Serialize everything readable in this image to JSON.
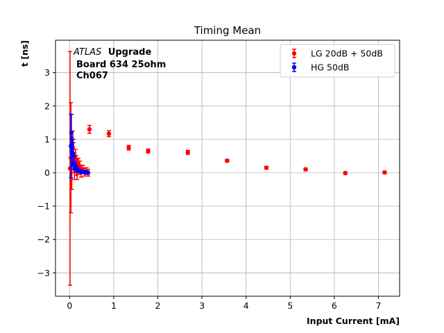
{
  "chart_data": {
    "type": "scatter",
    "title": "Timing Mean",
    "xlabel": "Input Current [mA]",
    "ylabel": "t [ns]",
    "xlim": [
      -0.32,
      7.48
    ],
    "ylim": [
      -3.7,
      3.97
    ],
    "xticks": [
      0,
      1,
      2,
      3,
      4,
      5,
      6,
      7
    ],
    "yticks": [
      -3,
      -2,
      -1,
      0,
      1,
      2,
      3
    ],
    "grid": true,
    "legend_position": "top-right",
    "annotation": {
      "experiment": "ATLAS",
      "experiment_suffix": "Upgrade",
      "line2": "Board 634 25ohm",
      "line3": "Ch067"
    },
    "series": [
      {
        "name": "LG 20dB + 50dB",
        "color": "#ff0000",
        "points": [
          {
            "x": 0.01,
            "y": 0.13,
            "err": 3.5
          },
          {
            "x": 0.03,
            "y": 0.45,
            "err": 1.65
          },
          {
            "x": 0.05,
            "y": 0.3,
            "err": 0.8
          },
          {
            "x": 0.07,
            "y": 0.75,
            "err": 0.5
          },
          {
            "x": 0.09,
            "y": 0.45,
            "err": 0.45
          },
          {
            "x": 0.11,
            "y": 0.2,
            "err": 0.4
          },
          {
            "x": 0.13,
            "y": 0.45,
            "err": 0.25
          },
          {
            "x": 0.15,
            "y": 0.22,
            "err": 0.3
          },
          {
            "x": 0.17,
            "y": 0.1,
            "err": 0.3
          },
          {
            "x": 0.2,
            "y": 0.25,
            "err": 0.18
          },
          {
            "x": 0.23,
            "y": 0.15,
            "err": 0.2
          },
          {
            "x": 0.26,
            "y": 0.05,
            "err": 0.18
          },
          {
            "x": 0.3,
            "y": 0.1,
            "err": 0.12
          },
          {
            "x": 0.34,
            "y": 0.02,
            "err": 0.12
          },
          {
            "x": 0.38,
            "y": 0.05,
            "err": 0.1
          },
          {
            "x": 0.42,
            "y": 0.0,
            "err": 0.1
          },
          {
            "x": 0.45,
            "y": 1.3,
            "err": 0.12
          },
          {
            "x": 0.89,
            "y": 1.17,
            "err": 0.09
          },
          {
            "x": 1.34,
            "y": 0.75,
            "err": 0.07
          },
          {
            "x": 1.78,
            "y": 0.65,
            "err": 0.06
          },
          {
            "x": 2.68,
            "y": 0.61,
            "err": 0.06
          },
          {
            "x": 3.57,
            "y": 0.36,
            "err": 0.04
          },
          {
            "x": 4.46,
            "y": 0.15,
            "err": 0.04
          },
          {
            "x": 5.35,
            "y": 0.1,
            "err": 0.04
          },
          {
            "x": 6.25,
            "y": -0.01,
            "err": 0.04
          },
          {
            "x": 7.14,
            "y": 0.01,
            "err": 0.04
          }
        ]
      },
      {
        "name": "HG 50dB",
        "color": "#0000ff",
        "points": [
          {
            "x": 0.03,
            "y": 0.8,
            "err": 0.95
          },
          {
            "x": 0.04,
            "y": 1.2,
            "err": 0.55
          },
          {
            "x": 0.05,
            "y": 0.75,
            "err": 0.3
          },
          {
            "x": 0.06,
            "y": 0.6,
            "err": 0.4
          },
          {
            "x": 0.08,
            "y": 0.55,
            "err": 0.45
          },
          {
            "x": 0.1,
            "y": 0.3,
            "err": 0.2
          },
          {
            "x": 0.12,
            "y": 0.2,
            "err": 0.1
          },
          {
            "x": 0.15,
            "y": 0.12,
            "err": 0.08
          },
          {
            "x": 0.18,
            "y": 0.08,
            "err": 0.06
          },
          {
            "x": 0.22,
            "y": 0.05,
            "err": 0.05
          },
          {
            "x": 0.27,
            "y": 0.03,
            "err": 0.05
          },
          {
            "x": 0.31,
            "y": 0.02,
            "err": 0.04
          },
          {
            "x": 0.36,
            "y": 0.01,
            "err": 0.04
          },
          {
            "x": 0.41,
            "y": 0.0,
            "err": 0.04
          }
        ]
      }
    ]
  }
}
